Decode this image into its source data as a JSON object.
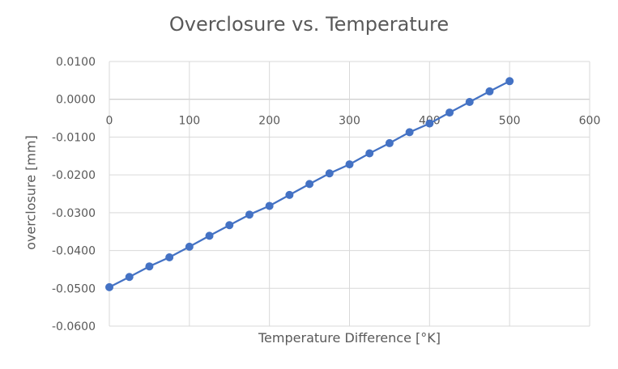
{
  "chart_data": {
    "type": "line",
    "title": "Overclosure vs. Temperature",
    "xlabel": "Temperature Difference [°K]",
    "ylabel": "overclosure [mm]",
    "xlim": [
      0,
      600
    ],
    "ylim": [
      -0.06,
      0.01
    ],
    "x_ticks": [
      "0",
      "100",
      "200",
      "300",
      "400",
      "500",
      "600"
    ],
    "y_ticks": [
      "0.0100",
      "0.0000",
      "-0.0100",
      "-0.0200",
      "-0.0300",
      "-0.0400",
      "-0.0500",
      "-0.0600"
    ],
    "grid": true,
    "legend": "none",
    "series": [
      {
        "color": "#4472C4",
        "markers": true,
        "x": [
          0,
          25,
          50,
          75,
          100,
          125,
          150,
          175,
          200,
          225,
          250,
          275,
          300,
          325,
          350,
          375,
          400,
          425,
          450,
          475,
          500
        ],
        "y": [
          -0.0497,
          -0.047,
          -0.0442,
          -0.0418,
          -0.039,
          -0.0361,
          -0.0333,
          -0.0305,
          -0.0282,
          -0.0253,
          -0.0224,
          -0.0196,
          -0.0172,
          -0.0143,
          -0.0116,
          -0.0087,
          -0.0064,
          -0.0035,
          -0.0007,
          0.0021,
          0.0048
        ]
      }
    ]
  }
}
